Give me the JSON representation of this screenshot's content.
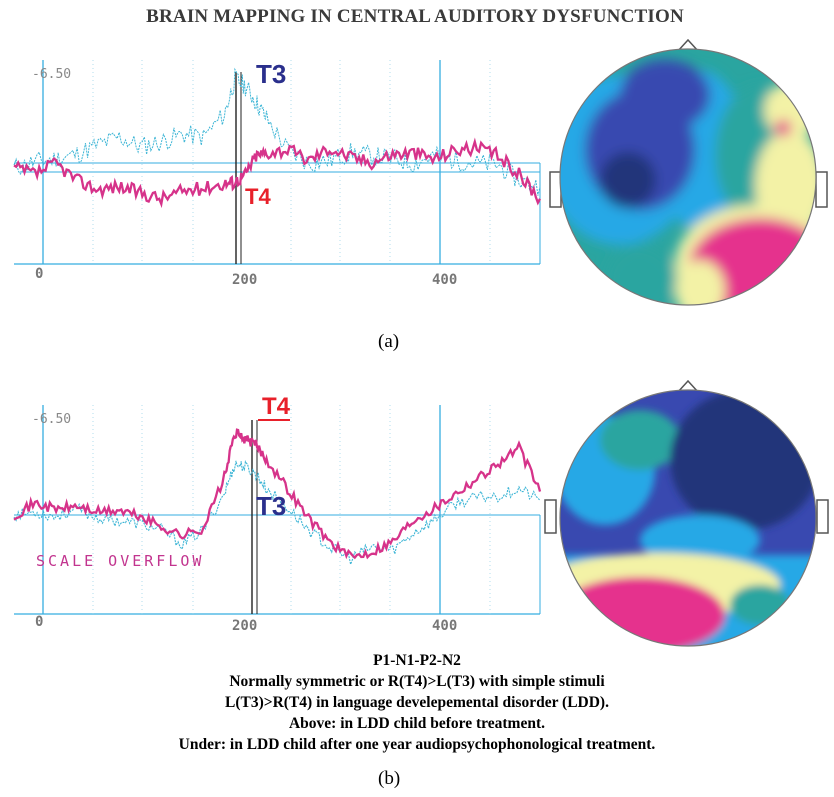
{
  "title": "BRAIN MAPPING IN CENTRAL AUDITORY DYSFUNCTION",
  "panel_a": {
    "label": "(a)",
    "scale_label": "-6.50",
    "ticks": [
      "0",
      "200",
      "400"
    ],
    "trace_labels": {
      "t3": "T3",
      "t4": "T4"
    }
  },
  "panel_b": {
    "label": "(b)",
    "scale_label": "-6.50",
    "ticks": [
      "0",
      "200",
      "400"
    ],
    "trace_labels": {
      "t3": "T3",
      "t4": "T4"
    },
    "overflow_text": "SCALE OVERFLOW"
  },
  "caption_lines": [
    "P1-N1-P2-N2",
    "Normally symmetric or R(T4)>L(T3) with simple stimuli",
    "L(T3)>R(T4) in language develepemental disorder (LDD).",
    "Above: in LDD child before treatment.",
    "Under: in LDD child after one year audiopsychophonological treatment."
  ],
  "colors": {
    "t3_trace": "#3fb6d6",
    "t4_trace": "#d6338a",
    "grid": "#35aee0",
    "t3_label": "#2a2f8c",
    "t4_label_a": "#e8202a",
    "t4_label_b": "#e8202a",
    "map_dark_blue": "#23347a",
    "map_blue": "#3949b0",
    "map_cyan": "#25a8e6",
    "map_teal": "#2aa5a0",
    "map_yellow": "#f3f2a6",
    "map_magenta": "#e5338d"
  },
  "chart_data": [
    {
      "type": "line",
      "title": "",
      "xlabel": "",
      "ylabel": "",
      "xlim": [
        -20,
        480
      ],
      "ylim": [
        -6.5,
        6.5
      ],
      "x_ticks": [
        0,
        200,
        400
      ],
      "series": [
        {
          "name": "T3",
          "x": [
            -20,
            0,
            20,
            40,
            60,
            80,
            100,
            120,
            140,
            160,
            180,
            190,
            200,
            210,
            220,
            240,
            260,
            280,
            300,
            320,
            340,
            360,
            380,
            400,
            420,
            440,
            460,
            480
          ],
          "values": [
            0.0,
            0.4,
            0.6,
            0.9,
            1.5,
            2.0,
            1.4,
            1.7,
            2.2,
            2.0,
            3.5,
            5.8,
            5.3,
            4.3,
            3.2,
            1.2,
            0.3,
            0.5,
            1.0,
            0.8,
            0.6,
            0.3,
            0.8,
            0.5,
            0.3,
            0.2,
            -0.8,
            -1.2
          ]
        },
        {
          "name": "T4",
          "x": [
            -20,
            0,
            20,
            40,
            60,
            80,
            100,
            120,
            140,
            160,
            180,
            190,
            200,
            210,
            220,
            240,
            260,
            280,
            300,
            320,
            340,
            360,
            380,
            400,
            420,
            440,
            460,
            480
          ],
          "values": [
            0.0,
            -0.4,
            0.3,
            -0.8,
            -1.4,
            -1.2,
            -1.6,
            -2.0,
            -1.5,
            -1.3,
            -1.0,
            -0.9,
            -0.4,
            0.8,
            1.0,
            1.2,
            0.5,
            1.3,
            0.7,
            0.4,
            0.9,
            1.0,
            0.6,
            1.2,
            1.3,
            0.8,
            -0.4,
            -2.0
          ]
        }
      ]
    },
    {
      "type": "line",
      "title": "",
      "xlabel": "",
      "ylabel": "",
      "xlim": [
        -20,
        480
      ],
      "ylim": [
        -6.5,
        6.5
      ],
      "x_ticks": [
        0,
        200,
        400
      ],
      "series": [
        {
          "name": "T3",
          "x": [
            -20,
            0,
            20,
            40,
            60,
            80,
            100,
            120,
            140,
            160,
            180,
            190,
            200,
            210,
            220,
            240,
            260,
            280,
            300,
            320,
            340,
            360,
            380,
            400,
            420,
            440,
            460,
            480
          ],
          "values": [
            0.0,
            0.2,
            -0.1,
            0.4,
            -0.2,
            -0.4,
            -0.6,
            -1.0,
            -2.0,
            -1.0,
            1.5,
            3.5,
            3.3,
            2.8,
            1.8,
            0.5,
            -1.0,
            -2.2,
            -3.0,
            -2.2,
            -2.4,
            -1.2,
            -0.3,
            0.8,
            1.2,
            1.3,
            1.8,
            1.0
          ]
        },
        {
          "name": "T4",
          "x": [
            -20,
            0,
            20,
            40,
            60,
            80,
            100,
            120,
            140,
            160,
            180,
            190,
            200,
            210,
            220,
            240,
            260,
            280,
            300,
            320,
            340,
            360,
            380,
            400,
            420,
            440,
            460,
            480
          ],
          "values": [
            0.0,
            0.8,
            0.4,
            0.6,
            0.2,
            0.3,
            -0.1,
            -0.8,
            -1.4,
            -0.9,
            2.6,
            5.6,
            5.2,
            4.8,
            3.8,
            1.8,
            -0.2,
            -1.8,
            -2.9,
            -2.5,
            -1.8,
            -0.3,
            0.5,
            1.5,
            2.5,
            3.5,
            4.6,
            1.6
          ]
        }
      ]
    }
  ]
}
